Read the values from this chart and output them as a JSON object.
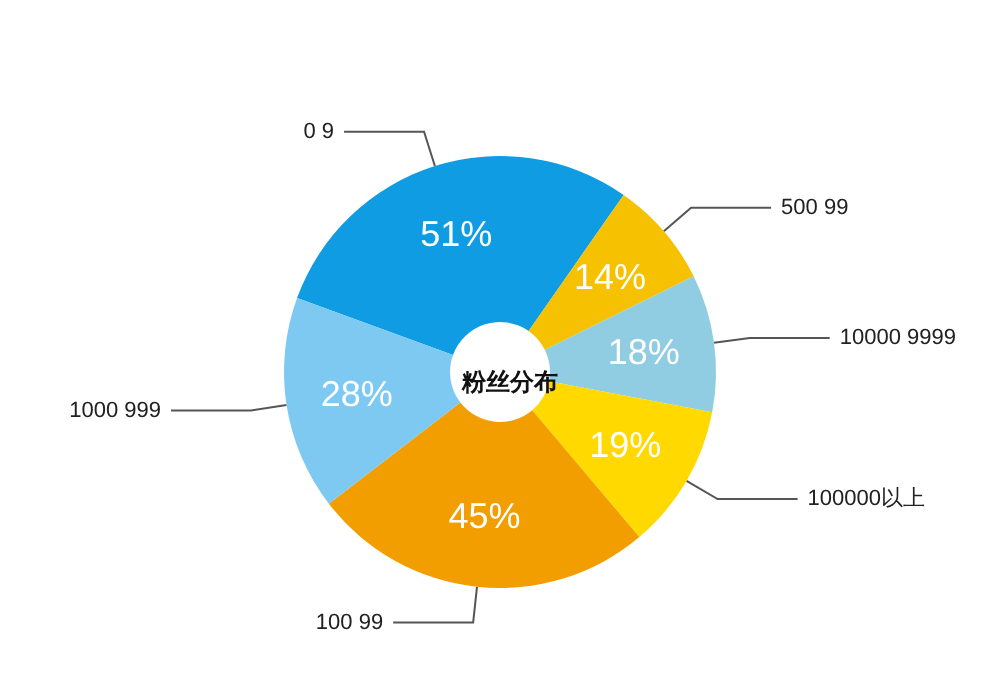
{
  "chart_data": {
    "type": "donut",
    "title": "粉丝分布",
    "categories": [
      "0 9",
      "500 99",
      "10000 9999",
      "100000以上",
      "100 99",
      "1000 999"
    ],
    "values": [
      51,
      14,
      18,
      19,
      45,
      28
    ],
    "value_labels": [
      "51%",
      "14%",
      "18%",
      "19%",
      "45%",
      "28%"
    ],
    "colors": [
      "#109ce2",
      "#f6c100",
      "#90cde2",
      "#ffd900",
      "#f29d00",
      "#7ec9f2"
    ],
    "legend": false
  }
}
